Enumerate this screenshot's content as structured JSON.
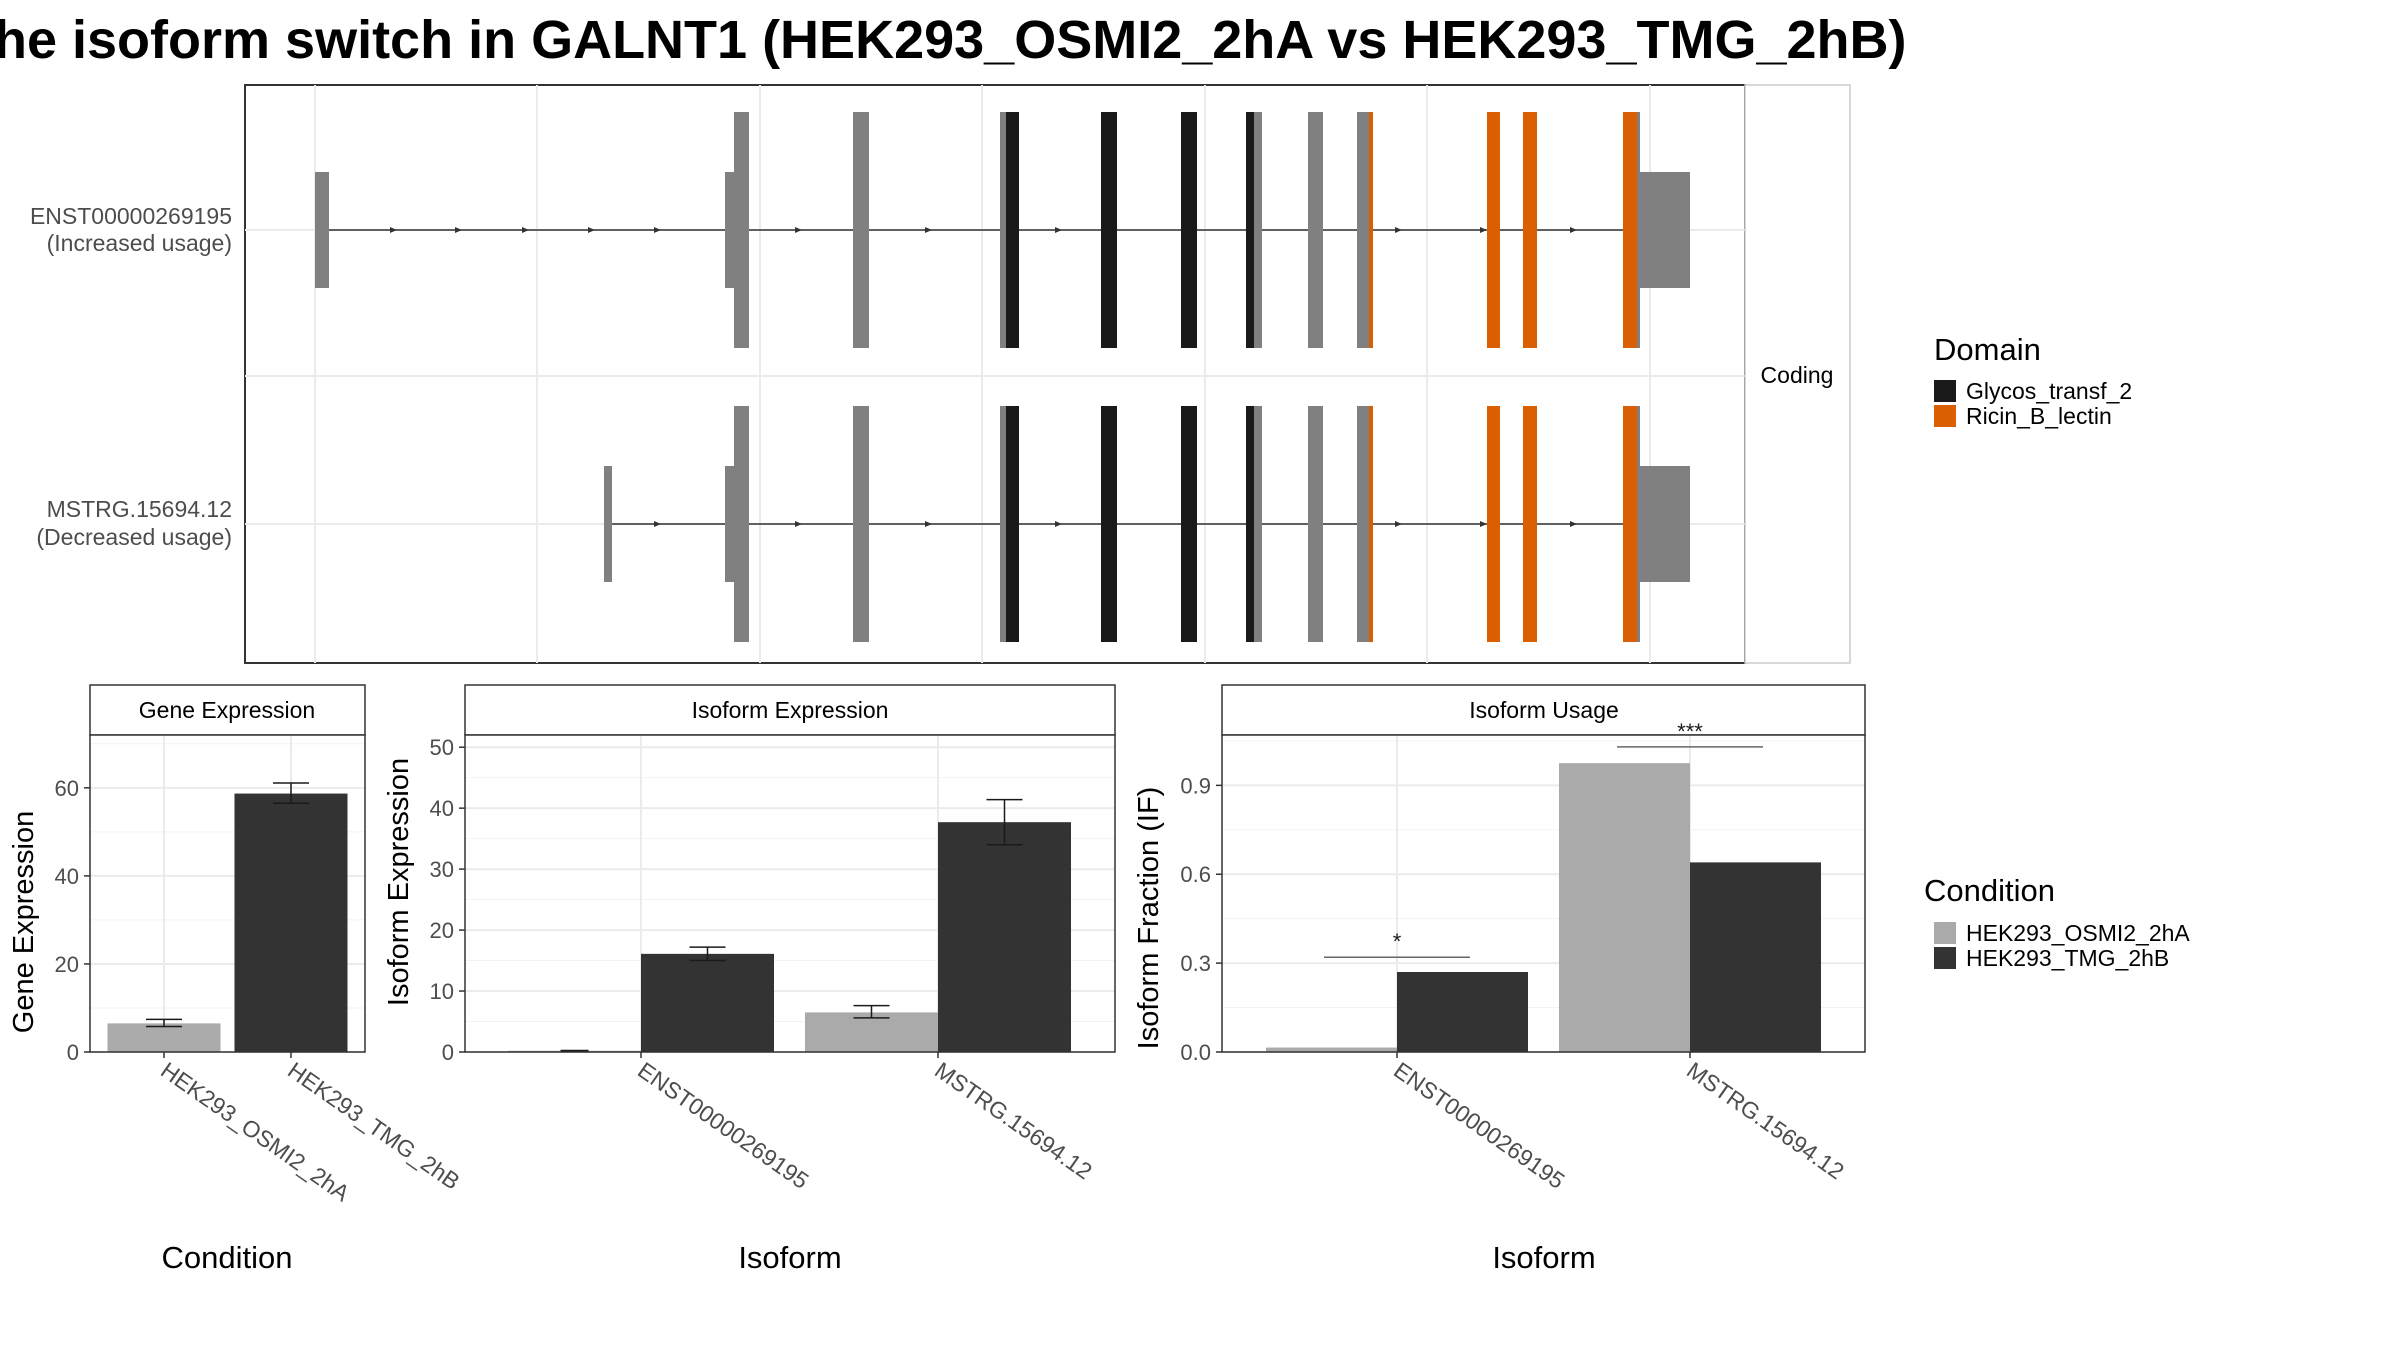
{
  "chart_data": {
    "title": "he isoform switch in GALNT1 (HEK293_OSMI2_2hA vs HEK293_TMG_2hB)",
    "structure_panel": {
      "type": "transcript_structure",
      "strip_label": "Coding",
      "transcripts": [
        {
          "id": "ENST00000269195",
          "usage": "(Increased usage)"
        },
        {
          "id": "MSTRG.15694.12",
          "usage": "(Decreased usage)"
        }
      ],
      "colors": {
        "Glycos_transf_2": "#1a1a1a",
        "Ricin_B_lectin": "#d95f02",
        "non_domain": "#808080"
      },
      "domain_legend": {
        "title": "Domain",
        "items": [
          {
            "label": "Glycos_transf_2",
            "color": "#1a1a1a"
          },
          {
            "label": "Ricin_B_lectin",
            "color": "#d95f02"
          }
        ]
      }
    },
    "condition_legend": {
      "title": "Condition",
      "items": [
        {
          "label": "HEK293_OSMI2_2hA",
          "color": "#aaaaaa"
        },
        {
          "label": "HEK293_TMG_2hB",
          "color": "#333333"
        }
      ]
    },
    "panels": [
      {
        "type": "bar",
        "strip": "Gene Expression",
        "ylabel": "Gene Expression",
        "xlabel": "Condition",
        "categories": [
          "HEK293_OSMI2_2hA",
          "HEK293_TMG_2hB"
        ],
        "ylim": [
          0,
          72
        ],
        "yticks": [
          0,
          20,
          40,
          60
        ],
        "bars": [
          {
            "category": "HEK293_OSMI2_2hA",
            "value": 6.5,
            "err": [
              5.8,
              7.4
            ],
            "color": "#aaaaaa"
          },
          {
            "category": "HEK293_TMG_2hB",
            "value": 58.7,
            "err": [
              56.5,
              61.1
            ],
            "color": "#333333"
          }
        ]
      },
      {
        "type": "bar",
        "strip": "Isoform Expression",
        "ylabel": "Isoform Expression",
        "xlabel": "Isoform",
        "categories": [
          "ENST00000269195",
          "MSTRG.15694.12"
        ],
        "ylim": [
          0,
          52
        ],
        "yticks": [
          0,
          10,
          20,
          30,
          40,
          50
        ],
        "series": [
          {
            "name": "HEK293_OSMI2_2hA",
            "values": [
              0.2,
              6.5
            ],
            "errs": [
              null,
              [
                5.6,
                7.6
              ]
            ]
          },
          {
            "name": "HEK293_TMG_2hB",
            "values": [
              16.1,
              37.7
            ],
            "errs": [
              [
                15.0,
                17.2
              ],
              [
                34.0,
                41.4
              ]
            ]
          }
        ],
        "zero_err_marks": [
          0.2,
          null
        ]
      },
      {
        "type": "bar",
        "strip": "Isoform Usage",
        "ylabel": "Isoform Fraction (IF)",
        "xlabel": "Isoform",
        "categories": [
          "ENST00000269195",
          "MSTRG.15694.12"
        ],
        "ylim": [
          0,
          1.07
        ],
        "yticks": [
          "0.0",
          "0.3",
          "0.6",
          "0.9"
        ],
        "series": [
          {
            "name": "HEK293_OSMI2_2hA",
            "values": [
              0.015,
              0.975
            ]
          },
          {
            "name": "HEK293_TMG_2hB",
            "values": [
              0.27,
              0.64
            ]
          }
        ],
        "significance": [
          {
            "category": "ENST00000269195",
            "label": "*",
            "y": 0.32
          },
          {
            "category": "MSTRG.15694.12",
            "label": "***",
            "y": 1.03
          }
        ]
      }
    ]
  }
}
